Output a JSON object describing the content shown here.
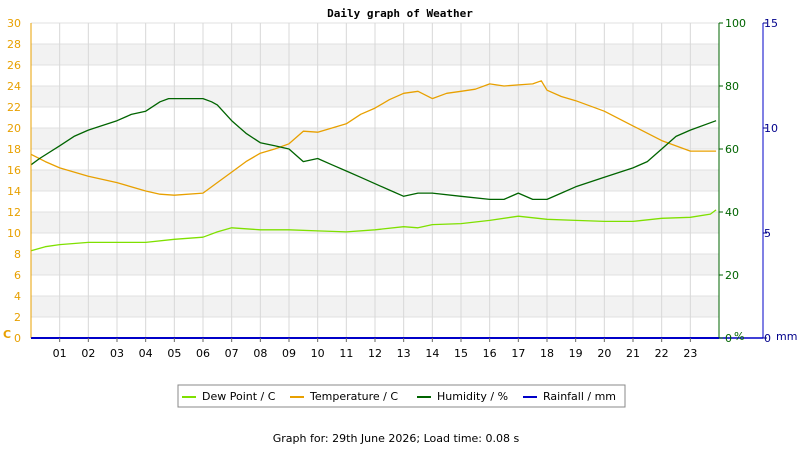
{
  "chart_data": {
    "type": "line",
    "title": "Daily graph of Weather",
    "x_ticks": [
      "01",
      "02",
      "03",
      "04",
      "05",
      "06",
      "07",
      "08",
      "09",
      "10",
      "11",
      "12",
      "13",
      "14",
      "15",
      "16",
      "17",
      "18",
      "19",
      "20",
      "21",
      "22",
      "23"
    ],
    "x_range": [
      0,
      24
    ],
    "axes": {
      "temp": {
        "unit": "C",
        "ylim": [
          0,
          30
        ],
        "ticks": [
          0,
          2,
          4,
          6,
          8,
          10,
          12,
          14,
          16,
          18,
          20,
          22,
          24,
          26,
          28,
          30
        ],
        "color": "#e8a000"
      },
      "humidity": {
        "unit": "%",
        "ylim": [
          0,
          100
        ],
        "ticks": [
          0,
          20,
          40,
          60,
          80,
          100
        ],
        "color": "#006400"
      },
      "rain": {
        "unit": "mm",
        "ylim": [
          0,
          15
        ],
        "ticks": [
          0,
          5,
          10,
          15
        ],
        "color": "#00008b"
      }
    },
    "grid": true,
    "legend_position": "bottom",
    "series": [
      {
        "name": "Dew Point / C",
        "axis": "temp",
        "color": "#7fe000",
        "x": [
          0,
          0.5,
          1,
          2,
          3,
          4,
          5,
          6,
          6.5,
          7,
          8,
          9,
          10,
          11,
          12,
          13,
          13.5,
          14,
          15,
          16,
          17,
          18,
          19,
          20,
          21,
          22,
          23,
          23.7,
          23.9
        ],
        "y": [
          8.3,
          8.7,
          8.9,
          9.1,
          9.1,
          9.1,
          9.4,
          9.6,
          10.1,
          10.5,
          10.3,
          10.3,
          10.2,
          10.1,
          10.3,
          10.6,
          10.5,
          10.8,
          10.9,
          11.2,
          11.6,
          11.3,
          11.2,
          11.1,
          11.1,
          11.4,
          11.5,
          11.8,
          12.2
        ]
      },
      {
        "name": "Temperature / C",
        "axis": "temp",
        "color": "#e8a000",
        "x": [
          0,
          0.5,
          1,
          2,
          3,
          4,
          4.5,
          5,
          6,
          6.5,
          7,
          7.5,
          8,
          8.5,
          9,
          9.5,
          10,
          10.5,
          11,
          11.5,
          12,
          12.5,
          13,
          13.5,
          14,
          14.5,
          15,
          15.5,
          16,
          16.5,
          17,
          17.5,
          17.8,
          18,
          18.5,
          19,
          20,
          21,
          22,
          23,
          23.9
        ],
        "y": [
          17.5,
          16.8,
          16.2,
          15.4,
          14.8,
          14.0,
          13.7,
          13.6,
          13.8,
          14.8,
          15.8,
          16.8,
          17.6,
          18.0,
          18.5,
          19.7,
          19.6,
          20.0,
          20.4,
          21.3,
          21.9,
          22.7,
          23.3,
          23.5,
          22.8,
          23.3,
          23.5,
          23.7,
          24.2,
          24.0,
          24.1,
          24.2,
          24.5,
          23.6,
          23.0,
          22.6,
          21.6,
          20.2,
          18.8,
          17.8,
          17.8
        ]
      },
      {
        "name": "Humidity / %",
        "axis": "humidity",
        "color": "#006400",
        "x": [
          0,
          0.3,
          1,
          1.5,
          2,
          3,
          3.5,
          4,
          4.5,
          4.8,
          5,
          5.5,
          6,
          6.3,
          6.5,
          7,
          7.5,
          8,
          8.5,
          9,
          9.5,
          10,
          10.5,
          11,
          11.5,
          12,
          12.5,
          13,
          13.5,
          14,
          15,
          16,
          16.5,
          17,
          17.5,
          18,
          18.5,
          19,
          20,
          21,
          21.5,
          22,
          22.5,
          23,
          23.9
        ],
        "y": [
          55,
          57,
          61,
          64,
          66,
          69,
          71,
          72,
          75,
          76,
          76,
          76,
          76,
          75,
          74,
          69,
          65,
          62,
          61,
          60,
          56,
          57,
          55,
          53,
          51,
          49,
          47,
          45,
          46,
          46,
          45,
          44,
          44,
          46,
          44,
          44,
          46,
          48,
          51,
          54,
          56,
          60,
          64,
          66,
          69
        ]
      },
      {
        "name": "Rainfall / mm",
        "axis": "rain",
        "color": "#0000c8",
        "x": [
          0,
          24
        ],
        "y": [
          0,
          0
        ]
      }
    ]
  },
  "units": {
    "temp": "C",
    "humidity": "%",
    "rain": "mm"
  },
  "footer": "Graph for: 29th June 2026; Load time: 0.08 s"
}
